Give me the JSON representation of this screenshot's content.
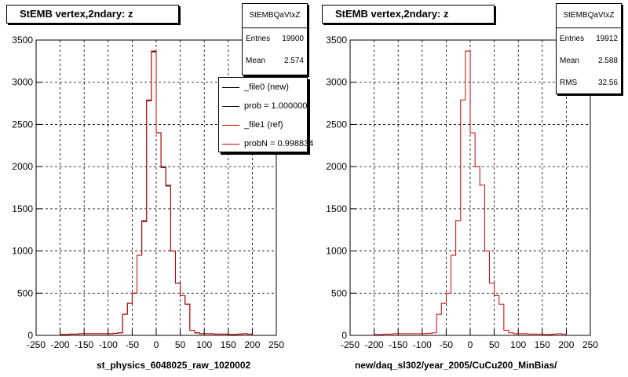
{
  "colors": {
    "new": "#000000",
    "ref": "#cc0000",
    "grid": "#000000"
  },
  "panels": [
    {
      "title": "StEMB  vertex,2ndary: z",
      "xlabel": "st_physics_6048025_raw_1020002",
      "stats": {
        "name": "StEMBQaVtxZ",
        "rows": [
          {
            "label": "Entries",
            "value": "19900"
          },
          {
            "label": "Mean",
            "value": "2.574"
          }
        ]
      },
      "legend": {
        "items": [
          {
            "label": "_file0 (new)",
            "color": "#000000"
          },
          {
            "label": "prob = 1.000000",
            "color": "#000000"
          },
          {
            "label": "_file1 (ref)",
            "color": "#cc0000"
          },
          {
            "label": "probN = 0.998834",
            "color": "#cc0000"
          }
        ]
      }
    },
    {
      "title": "StEMB  vertex,2ndary: z",
      "xlabel": "new/daq_sl302/year_2005/CuCu200_MinBias/",
      "stats": {
        "name": "StEMBQaVtxZ",
        "rows": [
          {
            "label": "Entries",
            "value": "19912"
          },
          {
            "label": "Mean",
            "value": "2.588"
          },
          {
            "label": "RMS",
            "value": "32.56"
          }
        ]
      }
    }
  ],
  "chart_data": [
    {
      "type": "histogram",
      "title": "StEMB  vertex,2ndary: z",
      "xlabel": "st_physics_6048025_raw_1020002",
      "xlim": [
        -250,
        250
      ],
      "ylim": [
        0,
        3500
      ],
      "xticks": [
        -250,
        -200,
        -150,
        -100,
        -50,
        0,
        50,
        100,
        150,
        200,
        250
      ],
      "yticks": [
        0,
        500,
        1000,
        1500,
        2000,
        2500,
        3000,
        3500
      ],
      "grid": true,
      "bin_width": 10,
      "series": [
        {
          "name": "_file0 (new)",
          "color": "#000000",
          "bin_starts": [
            -200,
            -190,
            -180,
            -170,
            -160,
            -150,
            -140,
            -130,
            -120,
            -110,
            -100,
            -90,
            -80,
            -70,
            -60,
            -50,
            -40,
            -30,
            -20,
            -10,
            0,
            10,
            20,
            30,
            40,
            50,
            60,
            70,
            80,
            90,
            100,
            110,
            120,
            130,
            140,
            150,
            160,
            170,
            180,
            190
          ],
          "counts": [
            10,
            10,
            15,
            15,
            20,
            20,
            20,
            20,
            20,
            20,
            20,
            25,
            30,
            250,
            380,
            500,
            950,
            1350,
            2780,
            3360,
            2400,
            1990,
            1770,
            1000,
            620,
            470,
            370,
            60,
            30,
            20,
            20,
            20,
            15,
            15,
            15,
            10,
            10,
            15,
            20,
            15
          ]
        },
        {
          "name": "_file1 (ref)",
          "color": "#cc0000",
          "bin_starts": [
            -200,
            -190,
            -180,
            -170,
            -160,
            -150,
            -140,
            -130,
            -120,
            -110,
            -100,
            -90,
            -80,
            -70,
            -60,
            -50,
            -40,
            -30,
            -20,
            -10,
            0,
            10,
            20,
            30,
            40,
            50,
            60,
            70,
            80,
            90,
            100,
            110,
            120,
            130,
            140,
            150,
            160,
            170,
            180,
            190
          ],
          "counts": [
            10,
            10,
            15,
            15,
            20,
            20,
            20,
            20,
            20,
            20,
            20,
            25,
            30,
            250,
            380,
            500,
            950,
            1360,
            2790,
            3370,
            2400,
            2000,
            1780,
            1000,
            620,
            470,
            370,
            60,
            30,
            20,
            20,
            20,
            15,
            15,
            15,
            10,
            10,
            15,
            20,
            15
          ]
        }
      ],
      "legend": "top-right"
    },
    {
      "type": "histogram",
      "title": "StEMB  vertex,2ndary: z",
      "xlabel": "new/daq_sl302/year_2005/CuCu200_MinBias/",
      "xlim": [
        -250,
        250
      ],
      "ylim": [
        0,
        3500
      ],
      "xticks": [
        -250,
        -200,
        -150,
        -100,
        -50,
        0,
        50,
        100,
        150,
        200,
        250
      ],
      "yticks": [
        0,
        500,
        1000,
        1500,
        2000,
        2500,
        3000,
        3500
      ],
      "grid": true,
      "bin_width": 10,
      "series": [
        {
          "color": "#cc0000",
          "bin_starts": [
            -200,
            -190,
            -180,
            -170,
            -160,
            -150,
            -140,
            -130,
            -120,
            -110,
            -100,
            -90,
            -80,
            -70,
            -60,
            -50,
            -40,
            -30,
            -20,
            -10,
            0,
            10,
            20,
            30,
            40,
            50,
            60,
            70,
            80,
            90,
            100,
            110,
            120,
            130,
            140,
            150,
            160,
            170,
            180,
            190
          ],
          "counts": [
            10,
            10,
            15,
            15,
            20,
            20,
            20,
            20,
            20,
            20,
            20,
            25,
            30,
            250,
            380,
            500,
            950,
            1360,
            2790,
            3370,
            2400,
            2000,
            1780,
            1000,
            620,
            470,
            370,
            60,
            30,
            20,
            20,
            20,
            15,
            15,
            15,
            10,
            10,
            15,
            20,
            15
          ]
        }
      ]
    }
  ]
}
